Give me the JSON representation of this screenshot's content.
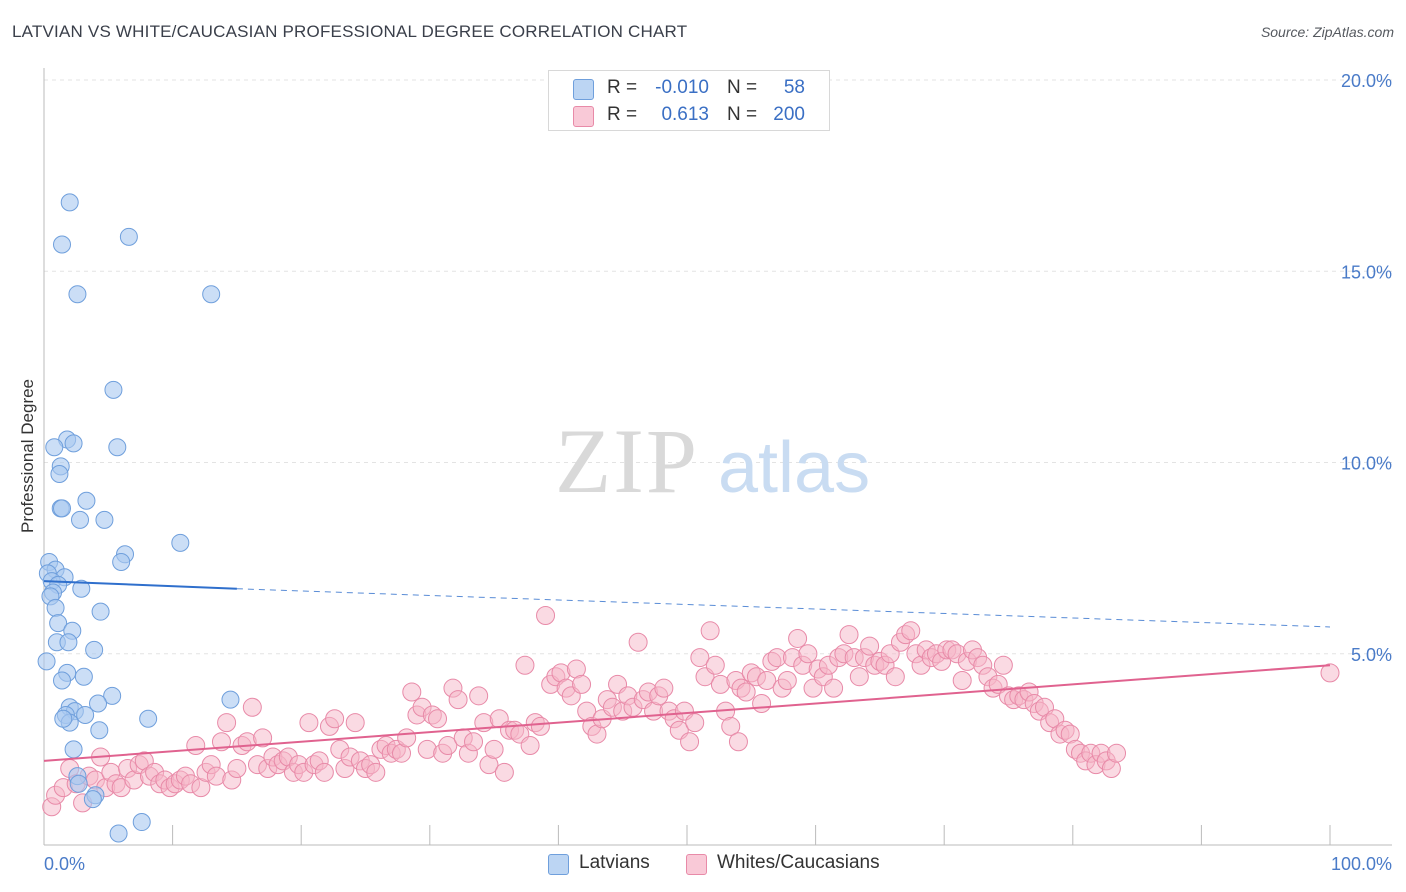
{
  "title": "LATVIAN VS WHITE/CAUCASIAN PROFESSIONAL DEGREE CORRELATION CHART",
  "source": "Source: ZipAtlas.com",
  "watermark": {
    "zip": "ZIP",
    "atlas": "atlas"
  },
  "colors": {
    "latvian_fill": "#a9c8f0",
    "latvian_stroke": "#6f9fdc",
    "latvian_line": "#2f6fcc",
    "white_fill": "#f6b6c8",
    "white_stroke": "#e88aa8",
    "white_line": "#e0628f",
    "axis_text": "#4a7bc8",
    "grid": "#e3e3e3"
  },
  "legend": {
    "rows": [
      {
        "r_label": "R =",
        "r_value": "-0.010",
        "n_label": "N =",
        "n_value": "58"
      },
      {
        "r_label": "R =",
        "r_value": "0.613",
        "n_label": "N =",
        "n_value": "200"
      }
    ]
  },
  "bottom_legend": {
    "series1": "Latvians",
    "series2": "Whites/Caucasians"
  },
  "chart_data": {
    "type": "scatter",
    "title": "LATVIAN VS WHITE/CAUCASIAN PROFESSIONAL DEGREE CORRELATION CHART",
    "xlabel": "",
    "ylabel": "Professional Degree",
    "xlim": [
      0,
      100
    ],
    "ylim": [
      0,
      20
    ],
    "x_tick_labels": [
      "0.0%",
      "100.0%"
    ],
    "y_ticks": [
      5,
      10,
      15,
      20
    ],
    "y_tick_labels": [
      "5.0%",
      "10.0%",
      "15.0%",
      "20.0%"
    ],
    "series": [
      {
        "name": "Latvians",
        "R": -0.01,
        "N": 58,
        "trend": {
          "x": [
            0,
            15
          ],
          "y": [
            6.9,
            6.7
          ],
          "dashed_to": [
            100,
            5.7
          ]
        },
        "points": [
          [
            2.0,
            16.8
          ],
          [
            1.4,
            15.7
          ],
          [
            6.6,
            15.9
          ],
          [
            2.6,
            14.4
          ],
          [
            13.0,
            14.4
          ],
          [
            5.4,
            11.9
          ],
          [
            1.8,
            10.6
          ],
          [
            2.3,
            10.5
          ],
          [
            0.8,
            10.4
          ],
          [
            5.7,
            10.4
          ],
          [
            1.3,
            9.9
          ],
          [
            1.2,
            9.7
          ],
          [
            3.3,
            9.0
          ],
          [
            1.3,
            8.8
          ],
          [
            1.4,
            8.8
          ],
          [
            2.8,
            8.5
          ],
          [
            4.7,
            8.5
          ],
          [
            10.6,
            7.9
          ],
          [
            6.3,
            7.6
          ],
          [
            6.0,
            7.4
          ],
          [
            0.4,
            7.4
          ],
          [
            0.9,
            7.2
          ],
          [
            0.3,
            7.1
          ],
          [
            1.6,
            7.0
          ],
          [
            0.6,
            6.9
          ],
          [
            1.1,
            6.8
          ],
          [
            2.9,
            6.7
          ],
          [
            0.7,
            6.6
          ],
          [
            0.5,
            6.5
          ],
          [
            0.9,
            6.2
          ],
          [
            4.4,
            6.1
          ],
          [
            1.1,
            5.8
          ],
          [
            2.2,
            5.6
          ],
          [
            1.0,
            5.3
          ],
          [
            1.9,
            5.3
          ],
          [
            3.9,
            5.1
          ],
          [
            0.2,
            4.8
          ],
          [
            1.8,
            4.5
          ],
          [
            3.1,
            4.4
          ],
          [
            1.4,
            4.3
          ],
          [
            5.3,
            3.9
          ],
          [
            14.5,
            3.8
          ],
          [
            4.2,
            3.7
          ],
          [
            2.0,
            3.6
          ],
          [
            2.4,
            3.5
          ],
          [
            3.2,
            3.4
          ],
          [
            1.7,
            3.4
          ],
          [
            8.1,
            3.3
          ],
          [
            2.0,
            3.2
          ],
          [
            4.3,
            3.0
          ],
          [
            2.3,
            2.5
          ],
          [
            2.6,
            1.8
          ],
          [
            2.7,
            1.6
          ],
          [
            4.0,
            1.3
          ],
          [
            3.8,
            1.2
          ],
          [
            7.6,
            0.6
          ],
          [
            5.8,
            0.3
          ],
          [
            1.5,
            3.3
          ]
        ]
      },
      {
        "name": "Whites/Caucasians",
        "R": 0.613,
        "N": 200,
        "trend": {
          "x": [
            0,
            100
          ],
          "y": [
            2.2,
            4.7
          ]
        },
        "points": [
          [
            0.6,
            1.0
          ],
          [
            0.9,
            1.3
          ],
          [
            1.5,
            1.5
          ],
          [
            2.0,
            2.0
          ],
          [
            2.5,
            1.6
          ],
          [
            3.0,
            1.1
          ],
          [
            3.5,
            1.8
          ],
          [
            4.0,
            1.7
          ],
          [
            4.4,
            2.3
          ],
          [
            4.8,
            1.5
          ],
          [
            5.2,
            1.9
          ],
          [
            5.6,
            1.6
          ],
          [
            6.0,
            1.5
          ],
          [
            6.5,
            2.0
          ],
          [
            7.0,
            1.7
          ],
          [
            7.4,
            2.1
          ],
          [
            7.8,
            2.2
          ],
          [
            8.2,
            1.8
          ],
          [
            8.6,
            1.9
          ],
          [
            9.0,
            1.6
          ],
          [
            9.4,
            1.7
          ],
          [
            9.8,
            1.5
          ],
          [
            10.2,
            1.6
          ],
          [
            10.6,
            1.7
          ],
          [
            11.0,
            1.8
          ],
          [
            11.4,
            1.6
          ],
          [
            11.8,
            2.6
          ],
          [
            12.2,
            1.5
          ],
          [
            12.6,
            1.9
          ],
          [
            13.0,
            2.1
          ],
          [
            13.4,
            1.8
          ],
          [
            13.8,
            2.7
          ],
          [
            14.2,
            3.2
          ],
          [
            14.6,
            1.7
          ],
          [
            15.0,
            2.0
          ],
          [
            15.4,
            2.6
          ],
          [
            15.8,
            2.7
          ],
          [
            16.2,
            3.6
          ],
          [
            16.6,
            2.1
          ],
          [
            17.0,
            2.8
          ],
          [
            17.4,
            2.0
          ],
          [
            17.8,
            2.3
          ],
          [
            18.2,
            2.1
          ],
          [
            18.6,
            2.2
          ],
          [
            19.0,
            2.3
          ],
          [
            19.4,
            1.9
          ],
          [
            19.8,
            2.1
          ],
          [
            20.2,
            1.9
          ],
          [
            20.6,
            3.2
          ],
          [
            21.0,
            2.1
          ],
          [
            21.4,
            2.2
          ],
          [
            21.8,
            1.9
          ],
          [
            22.2,
            3.1
          ],
          [
            22.6,
            3.3
          ],
          [
            23.0,
            2.5
          ],
          [
            23.4,
            2.0
          ],
          [
            23.8,
            2.3
          ],
          [
            24.2,
            3.2
          ],
          [
            24.6,
            2.2
          ],
          [
            25.0,
            2.0
          ],
          [
            25.4,
            2.1
          ],
          [
            25.8,
            1.9
          ],
          [
            26.2,
            2.5
          ],
          [
            26.6,
            2.6
          ],
          [
            27.0,
            2.4
          ],
          [
            27.4,
            2.5
          ],
          [
            27.8,
            2.4
          ],
          [
            28.2,
            2.8
          ],
          [
            28.6,
            4.0
          ],
          [
            29.0,
            3.4
          ],
          [
            29.4,
            3.6
          ],
          [
            29.8,
            2.5
          ],
          [
            30.2,
            3.4
          ],
          [
            30.6,
            3.3
          ],
          [
            31.0,
            2.4
          ],
          [
            31.4,
            2.6
          ],
          [
            31.8,
            4.1
          ],
          [
            32.2,
            3.8
          ],
          [
            32.6,
            2.8
          ],
          [
            33.0,
            2.4
          ],
          [
            33.4,
            2.7
          ],
          [
            33.8,
            3.9
          ],
          [
            34.2,
            3.2
          ],
          [
            34.6,
            2.1
          ],
          [
            35.0,
            2.5
          ],
          [
            35.4,
            3.3
          ],
          [
            35.8,
            1.9
          ],
          [
            36.2,
            3.0
          ],
          [
            36.6,
            3.0
          ],
          [
            37.0,
            2.9
          ],
          [
            37.4,
            4.7
          ],
          [
            37.8,
            2.6
          ],
          [
            38.2,
            3.2
          ],
          [
            38.6,
            3.1
          ],
          [
            39.0,
            6.0
          ],
          [
            39.4,
            4.2
          ],
          [
            39.8,
            4.4
          ],
          [
            40.2,
            4.5
          ],
          [
            40.6,
            4.1
          ],
          [
            41.0,
            3.9
          ],
          [
            41.4,
            4.6
          ],
          [
            41.8,
            4.2
          ],
          [
            42.2,
            3.5
          ],
          [
            42.6,
            3.1
          ],
          [
            43.0,
            2.9
          ],
          [
            43.4,
            3.3
          ],
          [
            43.8,
            3.8
          ],
          [
            44.2,
            3.6
          ],
          [
            44.6,
            4.2
          ],
          [
            45.0,
            3.5
          ],
          [
            45.4,
            3.9
          ],
          [
            45.8,
            3.6
          ],
          [
            46.2,
            5.3
          ],
          [
            46.6,
            3.8
          ],
          [
            47.0,
            4.0
          ],
          [
            47.4,
            3.5
          ],
          [
            47.8,
            3.9
          ],
          [
            48.2,
            4.1
          ],
          [
            48.6,
            3.5
          ],
          [
            49.0,
            3.3
          ],
          [
            49.4,
            3.0
          ],
          [
            49.8,
            3.5
          ],
          [
            50.2,
            2.7
          ],
          [
            50.6,
            3.2
          ],
          [
            51.0,
            4.9
          ],
          [
            51.4,
            4.4
          ],
          [
            51.8,
            5.6
          ],
          [
            52.2,
            4.7
          ],
          [
            52.6,
            4.2
          ],
          [
            53.0,
            3.5
          ],
          [
            53.4,
            3.1
          ],
          [
            53.8,
            4.3
          ],
          [
            54.2,
            4.1
          ],
          [
            54.6,
            4.0
          ],
          [
            55.0,
            4.5
          ],
          [
            55.4,
            4.4
          ],
          [
            55.8,
            3.7
          ],
          [
            56.2,
            4.3
          ],
          [
            56.6,
            4.8
          ],
          [
            57.0,
            4.9
          ],
          [
            57.4,
            4.1
          ],
          [
            57.8,
            4.3
          ],
          [
            58.2,
            4.9
          ],
          [
            58.6,
            5.4
          ],
          [
            59.0,
            4.7
          ],
          [
            59.4,
            5.0
          ],
          [
            59.8,
            4.1
          ],
          [
            60.2,
            4.6
          ],
          [
            60.6,
            4.4
          ],
          [
            61.0,
            4.7
          ],
          [
            61.4,
            4.1
          ],
          [
            61.8,
            4.9
          ],
          [
            62.2,
            5.0
          ],
          [
            62.6,
            5.5
          ],
          [
            63.0,
            4.9
          ],
          [
            63.4,
            4.4
          ],
          [
            63.8,
            4.9
          ],
          [
            64.2,
            5.2
          ],
          [
            64.6,
            4.7
          ],
          [
            65.0,
            4.8
          ],
          [
            65.4,
            4.7
          ],
          [
            65.8,
            5.0
          ],
          [
            66.2,
            4.4
          ],
          [
            66.6,
            5.3
          ],
          [
            67.0,
            5.5
          ],
          [
            67.4,
            5.6
          ],
          [
            67.8,
            5.0
          ],
          [
            68.2,
            4.7
          ],
          [
            68.6,
            5.1
          ],
          [
            69.0,
            4.9
          ],
          [
            69.4,
            5.0
          ],
          [
            69.8,
            4.8
          ],
          [
            70.2,
            5.1
          ],
          [
            70.6,
            5.1
          ],
          [
            71.0,
            5.0
          ],
          [
            71.4,
            4.3
          ],
          [
            71.8,
            4.8
          ],
          [
            72.2,
            5.1
          ],
          [
            72.6,
            4.9
          ],
          [
            73.0,
            4.7
          ],
          [
            73.4,
            4.4
          ],
          [
            73.8,
            4.1
          ],
          [
            74.2,
            4.2
          ],
          [
            74.6,
            4.7
          ],
          [
            75.0,
            3.9
          ],
          [
            75.4,
            3.8
          ],
          [
            75.8,
            3.9
          ],
          [
            76.2,
            3.8
          ],
          [
            76.6,
            4.0
          ],
          [
            77.0,
            3.7
          ],
          [
            77.4,
            3.5
          ],
          [
            77.8,
            3.6
          ],
          [
            78.2,
            3.2
          ],
          [
            78.6,
            3.3
          ],
          [
            79.0,
            2.9
          ],
          [
            79.4,
            3.0
          ],
          [
            79.8,
            2.9
          ],
          [
            80.2,
            2.5
          ],
          [
            80.6,
            2.4
          ],
          [
            81.0,
            2.2
          ],
          [
            81.4,
            2.4
          ],
          [
            81.8,
            2.1
          ],
          [
            82.2,
            2.4
          ],
          [
            82.6,
            2.2
          ],
          [
            83.0,
            2.0
          ],
          [
            83.4,
            2.4
          ],
          [
            100.0,
            4.5
          ],
          [
            54.0,
            2.7
          ]
        ]
      }
    ]
  }
}
